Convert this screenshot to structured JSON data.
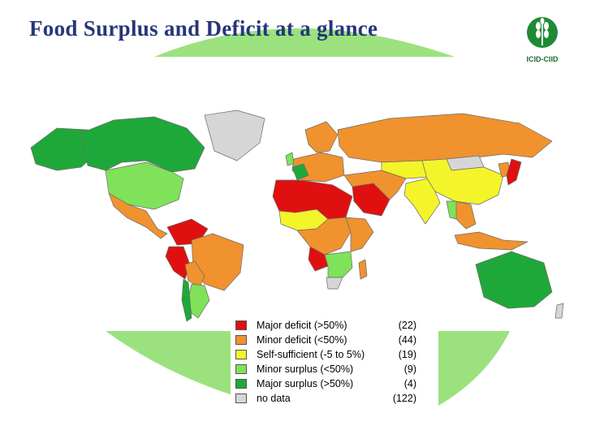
{
  "title": "Food Surplus and Deficit at a glance",
  "logo": {
    "text": "ICID-CIID"
  },
  "colors": {
    "major_deficit": "#e01010",
    "minor_deficit": "#f0922e",
    "self_sufficient": "#f4f42a",
    "minor_surplus": "#7fe25a",
    "major_surplus": "#1fa83a",
    "no_data": "#d6d6d6",
    "bg_arc": "#9be27f",
    "title": "#26367a"
  },
  "legend": {
    "items": [
      {
        "label": "Major deficit (>50%)",
        "count": "(22)",
        "color": "#e01010"
      },
      {
        "label": "Minor deficit (<50%)",
        "count": "(44)",
        "color": "#f0922e"
      },
      {
        "label": "Self-sufficient (-5 to 5%)",
        "count": "(19)",
        "color": "#f4f42a"
      },
      {
        "label": "Minor surplus (<50%)",
        "count": "(9)",
        "color": "#7fe25a"
      },
      {
        "label": "Major surplus (>50%)",
        "count": "(4)",
        "color": "#1fa83a"
      },
      {
        "label": "no data",
        "count": "(122)",
        "color": "#d6d6d6"
      }
    ]
  },
  "map": {
    "regions": [
      {
        "name": "alaska",
        "category": "major_surplus"
      },
      {
        "name": "canada",
        "category": "major_surplus"
      },
      {
        "name": "greenland",
        "category": "no_data"
      },
      {
        "name": "usa",
        "category": "minor_surplus"
      },
      {
        "name": "mexico-central-america",
        "category": "minor_deficit"
      },
      {
        "name": "venezuela-colombia",
        "category": "major_deficit"
      },
      {
        "name": "peru",
        "category": "major_deficit"
      },
      {
        "name": "brazil",
        "category": "minor_deficit"
      },
      {
        "name": "bolivia-paraguay",
        "category": "minor_deficit"
      },
      {
        "name": "argentina",
        "category": "minor_surplus"
      },
      {
        "name": "chile",
        "category": "major_surplus"
      },
      {
        "name": "europe",
        "category": "minor_deficit"
      },
      {
        "name": "france",
        "category": "major_surplus"
      },
      {
        "name": "uk",
        "category": "minor_surplus"
      },
      {
        "name": "scandinavia",
        "category": "minor_deficit"
      },
      {
        "name": "russia",
        "category": "minor_deficit"
      },
      {
        "name": "north-africa",
        "category": "major_deficit"
      },
      {
        "name": "sahel-africa",
        "category": "self_sufficient"
      },
      {
        "name": "central-africa",
        "category": "minor_deficit"
      },
      {
        "name": "east-africa",
        "category": "minor_deficit"
      },
      {
        "name": "southern-africa",
        "category": "minor_surplus"
      },
      {
        "name": "south-africa-tip",
        "category": "no_data"
      },
      {
        "name": "angola",
        "category": "major_deficit"
      },
      {
        "name": "madagascar",
        "category": "minor_deficit"
      },
      {
        "name": "saudi-arabia",
        "category": "major_deficit"
      },
      {
        "name": "middle-east",
        "category": "minor_deficit"
      },
      {
        "name": "central-asia",
        "category": "self_sufficient"
      },
      {
        "name": "china",
        "category": "self_sufficient"
      },
      {
        "name": "mongolia",
        "category": "no_data"
      },
      {
        "name": "india",
        "category": "self_sufficient"
      },
      {
        "name": "southeast-asia",
        "category": "minor_deficit"
      },
      {
        "name": "thailand",
        "category": "minor_surplus"
      },
      {
        "name": "japan",
        "category": "major_deficit"
      },
      {
        "name": "korea",
        "category": "minor_deficit"
      },
      {
        "name": "indonesia",
        "category": "minor_deficit"
      },
      {
        "name": "australia",
        "category": "major_surplus"
      },
      {
        "name": "new-zealand",
        "category": "no_data"
      }
    ]
  }
}
